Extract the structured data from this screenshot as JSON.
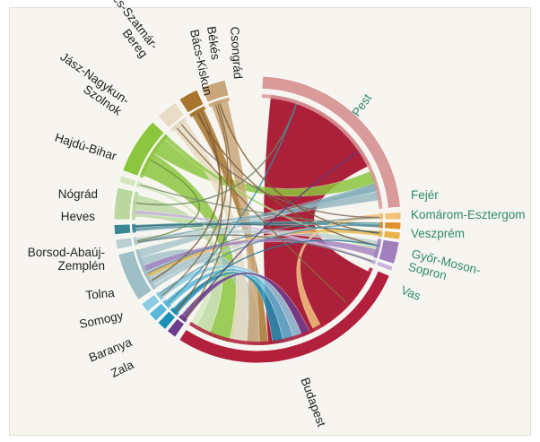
{
  "regions": [
    {
      "id": "pest",
      "name": "Pest",
      "color": "#d99a9a",
      "label_style": "green"
    },
    {
      "id": "fejer",
      "name": "Fejér",
      "color": "#f2c27a",
      "label_style": "green"
    },
    {
      "id": "komarom",
      "name": "Komárom-Esztergom",
      "color": "#e0902e",
      "label_style": "green"
    },
    {
      "id": "veszprem",
      "name": "Veszprém",
      "color": "#e9b54a",
      "label_style": "green"
    },
    {
      "id": "gyor",
      "name": "Győr-Moson-Sopron",
      "color": "#a07fbd",
      "label_style": "green"
    },
    {
      "id": "vas",
      "name": "Vas",
      "color": "#c7b3de",
      "label_style": "green"
    },
    {
      "id": "budapest",
      "name": "Budapest",
      "color": "#b3203c",
      "label_style": "dark"
    },
    {
      "id": "zala",
      "name": "Zala",
      "color": "#6a3d8e",
      "label_style": "dark"
    },
    {
      "id": "baranya",
      "name": "Baranya",
      "color": "#1c8fb7",
      "label_style": "dark"
    },
    {
      "id": "somogy",
      "name": "Somogy",
      "color": "#59b7d9",
      "label_style": "dark"
    },
    {
      "id": "tolna",
      "name": "Tolna",
      "color": "#8ccbe3",
      "label_style": "dark"
    },
    {
      "id": "borsod",
      "name": "Borsod-Abaúj-Zemplén",
      "color": "#9fbfc7",
      "label_style": "dark"
    },
    {
      "id": "heves",
      "name": "Heves",
      "color": "#bcd0d2",
      "label_style": "dark"
    },
    {
      "id": "nograd",
      "name": "Nógrád",
      "color": "#3a8794",
      "label_style": "dark"
    },
    {
      "id": "hajdu",
      "name": "Hajdú-Bihar",
      "color": "#b9d79e",
      "label_style": "dark"
    },
    {
      "id": "jasz",
      "name": "Jász-Nagykun-Szolnok",
      "color": "#d6e7c0",
      "label_style": "dark"
    },
    {
      "id": "szabolcs",
      "name": "Szabolcs-Szatmár-Bereg",
      "color": "#8cc63f",
      "label_style": "dark"
    },
    {
      "id": "bacs",
      "name": "Bács-Kiskun",
      "color": "#e8dcc4",
      "label_style": "dark"
    },
    {
      "id": "bekes",
      "name": "Békés",
      "color": "#a8742e",
      "label_style": "dark"
    },
    {
      "id": "csongrad",
      "name": "Csongrád",
      "color": "#c9a77a",
      "label_style": "dark"
    }
  ]
}
